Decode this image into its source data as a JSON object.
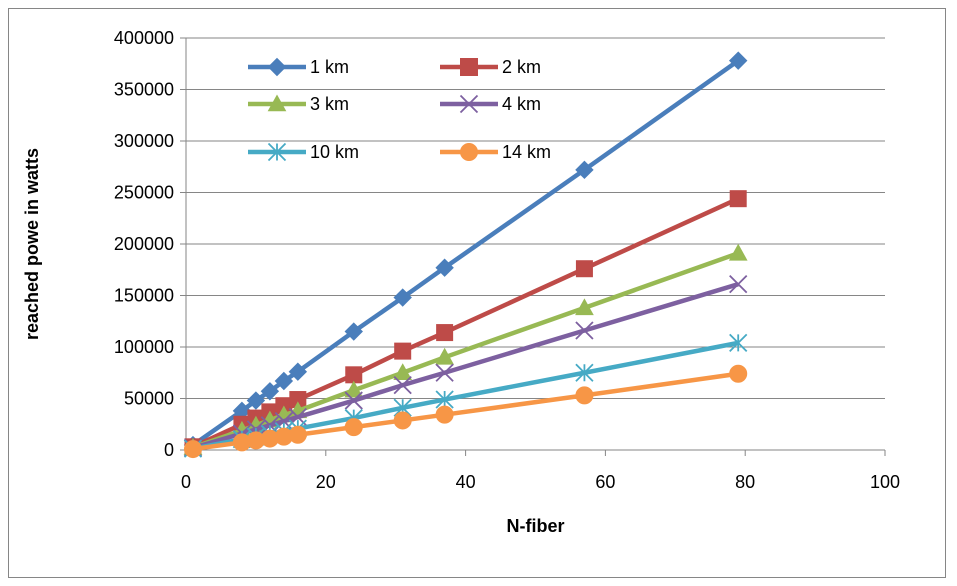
{
  "chart_data": {
    "type": "scatter",
    "title": "",
    "xlabel": "N-fiber",
    "ylabel": "reached powe in watts",
    "xlim": [
      0,
      100
    ],
    "ylim": [
      0,
      400000
    ],
    "x_ticks": [
      0,
      20,
      40,
      60,
      80,
      100
    ],
    "y_ticks": [
      0,
      50000,
      100000,
      150000,
      200000,
      250000,
      300000,
      350000,
      400000
    ],
    "grid": "horizontal",
    "legend_position": "top-left inside",
    "x": [
      1,
      8,
      10,
      12,
      14,
      16,
      24,
      31,
      37,
      57,
      79
    ],
    "series": [
      {
        "name": "1 km",
        "color": "#4A7EBB",
        "marker": "diamond",
        "values": [
          4800,
          38000,
          48000,
          57000,
          67000,
          76000,
          115000,
          148000,
          177000,
          272000,
          378000
        ]
      },
      {
        "name": "2 km",
        "color": "#BE4B48",
        "marker": "square",
        "values": [
          3100,
          25000,
          31000,
          37000,
          43000,
          49000,
          73000,
          96000,
          114000,
          176000,
          244000
        ]
      },
      {
        "name": "3 km",
        "color": "#98B954",
        "marker": "triangle",
        "values": [
          2400,
          19000,
          24000,
          29000,
          34000,
          38000,
          58000,
          75000,
          90000,
          138000,
          191000
        ]
      },
      {
        "name": "4 km",
        "color": "#7D60A0",
        "marker": "x",
        "values": [
          2000,
          16000,
          20000,
          24000,
          28000,
          32000,
          48000,
          63000,
          75000,
          116000,
          161000
        ]
      },
      {
        "name": "10 km",
        "color": "#46AAC5",
        "marker": "asterisk",
        "values": [
          1300,
          10500,
          13000,
          15600,
          18200,
          20800,
          31000,
          41000,
          49000,
          75000,
          104000
        ]
      },
      {
        "name": "14 km",
        "color": "#F79646",
        "marker": "circle",
        "values": [
          900,
          7400,
          9300,
          11100,
          13000,
          14800,
          22200,
          28700,
          34300,
          53000,
          74000
        ]
      }
    ]
  }
}
